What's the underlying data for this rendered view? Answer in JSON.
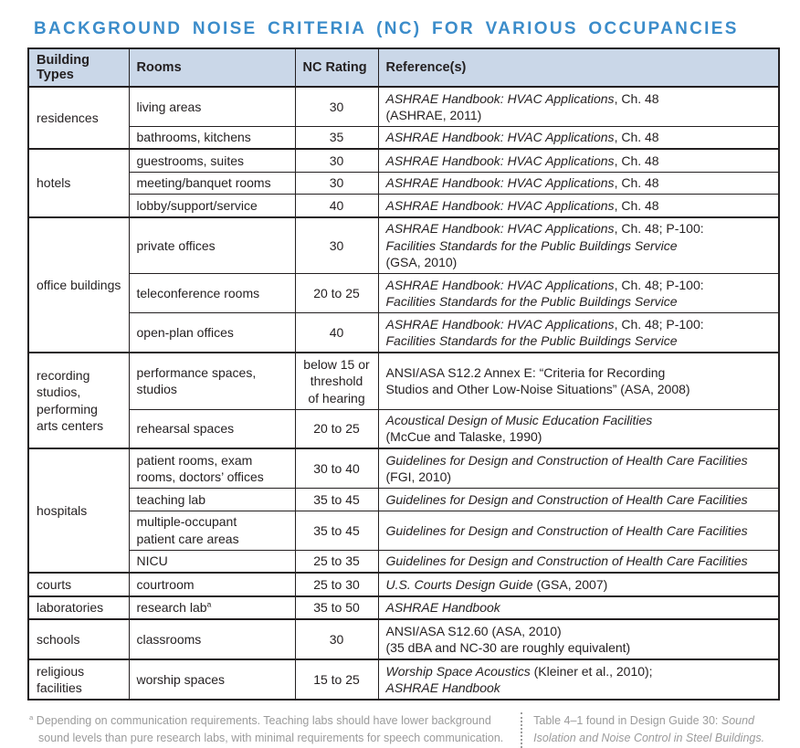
{
  "title": "BACKGROUND NOISE CRITERIA (NC) FOR VARIOUS OCCUPANCIES",
  "colors": {
    "accent": "#3b8cca",
    "headbg": "#cad7e8",
    "line": "#231f20",
    "ink": "#231f20",
    "muted": "#9b9b9b"
  },
  "table": {
    "headers": [
      "Building Types",
      "Rooms",
      "NC Rating",
      "Reference(s)"
    ],
    "groups": [
      {
        "building_type": "residences",
        "rows": [
          {
            "room": [
              {
                "t": "living areas"
              }
            ],
            "nc": [
              {
                "t": "30"
              }
            ],
            "reference": [
              {
                "t": "ASHRAE Handbook: HVAC Applications",
                "i": true
              },
              {
                "t": ", Ch. 48\n(ASHRAE, 2011)"
              }
            ]
          },
          {
            "room": [
              {
                "t": "bathrooms, kitchens"
              }
            ],
            "nc": [
              {
                "t": "35"
              }
            ],
            "reference": [
              {
                "t": "ASHRAE Handbook: HVAC Applications",
                "i": true
              },
              {
                "t": ", Ch. 48"
              }
            ]
          }
        ]
      },
      {
        "building_type": "hotels",
        "rows": [
          {
            "room": [
              {
                "t": "guestrooms, suites"
              }
            ],
            "nc": [
              {
                "t": "30"
              }
            ],
            "reference": [
              {
                "t": "ASHRAE Handbook: HVAC Applications",
                "i": true
              },
              {
                "t": ", Ch. 48"
              }
            ]
          },
          {
            "room": [
              {
                "t": "meeting/banquet rooms"
              }
            ],
            "nc": [
              {
                "t": "30"
              }
            ],
            "reference": [
              {
                "t": "ASHRAE Handbook: HVAC Applications",
                "i": true
              },
              {
                "t": ", Ch. 48"
              }
            ]
          },
          {
            "room": [
              {
                "t": "lobby/support/service"
              }
            ],
            "nc": [
              {
                "t": "40"
              }
            ],
            "reference": [
              {
                "t": "ASHRAE Handbook: HVAC Applications",
                "i": true
              },
              {
                "t": ", Ch. 48"
              }
            ]
          }
        ]
      },
      {
        "building_type": "office buildings",
        "rows": [
          {
            "room": [
              {
                "t": "private offices"
              }
            ],
            "nc": [
              {
                "t": "30"
              }
            ],
            "reference": [
              {
                "t": "ASHRAE Handbook: HVAC Applications",
                "i": true
              },
              {
                "t": ", Ch. 48; P-100:\n"
              },
              {
                "t": "Facilities Standards for the Public Buildings Service",
                "i": true
              },
              {
                "t": "\n(GSA, 2010)"
              }
            ]
          },
          {
            "room": [
              {
                "t": "teleconference rooms"
              }
            ],
            "nc": [
              {
                "t": "20 to 25"
              }
            ],
            "reference": [
              {
                "t": "ASHRAE Handbook: HVAC Applications",
                "i": true
              },
              {
                "t": ", Ch. 48; P-100:\n"
              },
              {
                "t": "Facilities Standards for the Public Buildings Service",
                "i": true
              }
            ]
          },
          {
            "room": [
              {
                "t": "open-plan offices"
              }
            ],
            "nc": [
              {
                "t": "40"
              }
            ],
            "reference": [
              {
                "t": "ASHRAE Handbook: HVAC Applications",
                "i": true
              },
              {
                "t": ", Ch. 48; P-100:\n"
              },
              {
                "t": "Facilities Standards for the Public Buildings Service",
                "i": true
              }
            ]
          }
        ]
      },
      {
        "building_type": "recording studios, performing arts centers",
        "rows": [
          {
            "room": [
              {
                "t": "performance spaces,\nstudios"
              }
            ],
            "nc": [
              {
                "t": "below 15 or\nthreshold\nof hearing"
              }
            ],
            "reference": [
              {
                "t": "ANSI/ASA S12.2 Annex E: “Criteria for Recording\nStudios and Other Low-Noise Situations” (ASA, 2008)"
              }
            ]
          },
          {
            "room": [
              {
                "t": "rehearsal spaces"
              }
            ],
            "nc": [
              {
                "t": "20 to 25"
              }
            ],
            "reference": [
              {
                "t": "Acoustical Design of Music Education Facilities",
                "i": true
              },
              {
                "t": "\n(McCue and Talaske, 1990)"
              }
            ]
          }
        ]
      },
      {
        "building_type": "hospitals",
        "rows": [
          {
            "room": [
              {
                "t": "patient rooms, exam\nrooms, doctors’ offices"
              }
            ],
            "nc": [
              {
                "t": "30 to 40"
              }
            ],
            "reference": [
              {
                "t": "Guidelines for Design and Construction of Health Care Facilities",
                "i": true
              },
              {
                "t": "\n(FGI, 2010)"
              }
            ]
          },
          {
            "room": [
              {
                "t": "teaching lab"
              }
            ],
            "nc": [
              {
                "t": "35 to 45"
              }
            ],
            "reference": [
              {
                "t": "Guidelines for Design and Construction of Health Care Facilities",
                "i": true
              }
            ]
          },
          {
            "room": [
              {
                "t": "multiple-occupant\npatient care areas"
              }
            ],
            "nc": [
              {
                "t": "35 to 45"
              }
            ],
            "reference": [
              {
                "t": "Guidelines for Design and Construction of Health Care Facilities",
                "i": true
              }
            ]
          },
          {
            "room": [
              {
                "t": "NICU"
              }
            ],
            "nc": [
              {
                "t": "25 to 35"
              }
            ],
            "reference": [
              {
                "t": "Guidelines for Design and Construction of Health Care Facilities",
                "i": true
              }
            ]
          }
        ]
      },
      {
        "building_type": "courts",
        "rows": [
          {
            "room": [
              {
                "t": "courtroom"
              }
            ],
            "nc": [
              {
                "t": "25 to 30"
              }
            ],
            "reference": [
              {
                "t": "U.S. Courts Design Guide",
                "i": true
              },
              {
                "t": " (GSA, 2007)"
              }
            ]
          }
        ]
      },
      {
        "building_type": "laboratories",
        "rows": [
          {
            "room": [
              {
                "t": "research lab"
              },
              {
                "t": "a",
                "sup": true
              }
            ],
            "nc": [
              {
                "t": "35 to 50"
              }
            ],
            "reference": [
              {
                "t": "ASHRAE Handbook",
                "i": true
              }
            ]
          }
        ]
      },
      {
        "building_type": "schools",
        "rows": [
          {
            "room": [
              {
                "t": "classrooms"
              }
            ],
            "nc": [
              {
                "t": "30"
              }
            ],
            "reference": [
              {
                "t": "ANSI/ASA S12.60 (ASA, 2010)\n(35 dBA and NC-30 are roughly equivalent)"
              }
            ]
          }
        ]
      },
      {
        "building_type": "religious facilities",
        "rows": [
          {
            "room": [
              {
                "t": "worship spaces"
              }
            ],
            "nc": [
              {
                "t": "15 to 25"
              }
            ],
            "reference": [
              {
                "t": "Worship Space Acoustics",
                "i": true
              },
              {
                "t": " (Kleiner et al., 2010);\n"
              },
              {
                "t": "ASHRAE Handbook",
                "i": true
              }
            ]
          }
        ]
      }
    ]
  },
  "footnote": [
    {
      "t": "a",
      "sup": true
    },
    {
      "t": " Depending on communication requirements. Teaching labs should have lower background sound levels than pure research labs, with minimal requirements for speech communication."
    }
  ],
  "source_note": [
    {
      "t": "Table 4–1 found in Design Guide 30: "
    },
    {
      "t": "Sound Isolation and Noise Control in Steel Buildings.",
      "i": true
    }
  ]
}
